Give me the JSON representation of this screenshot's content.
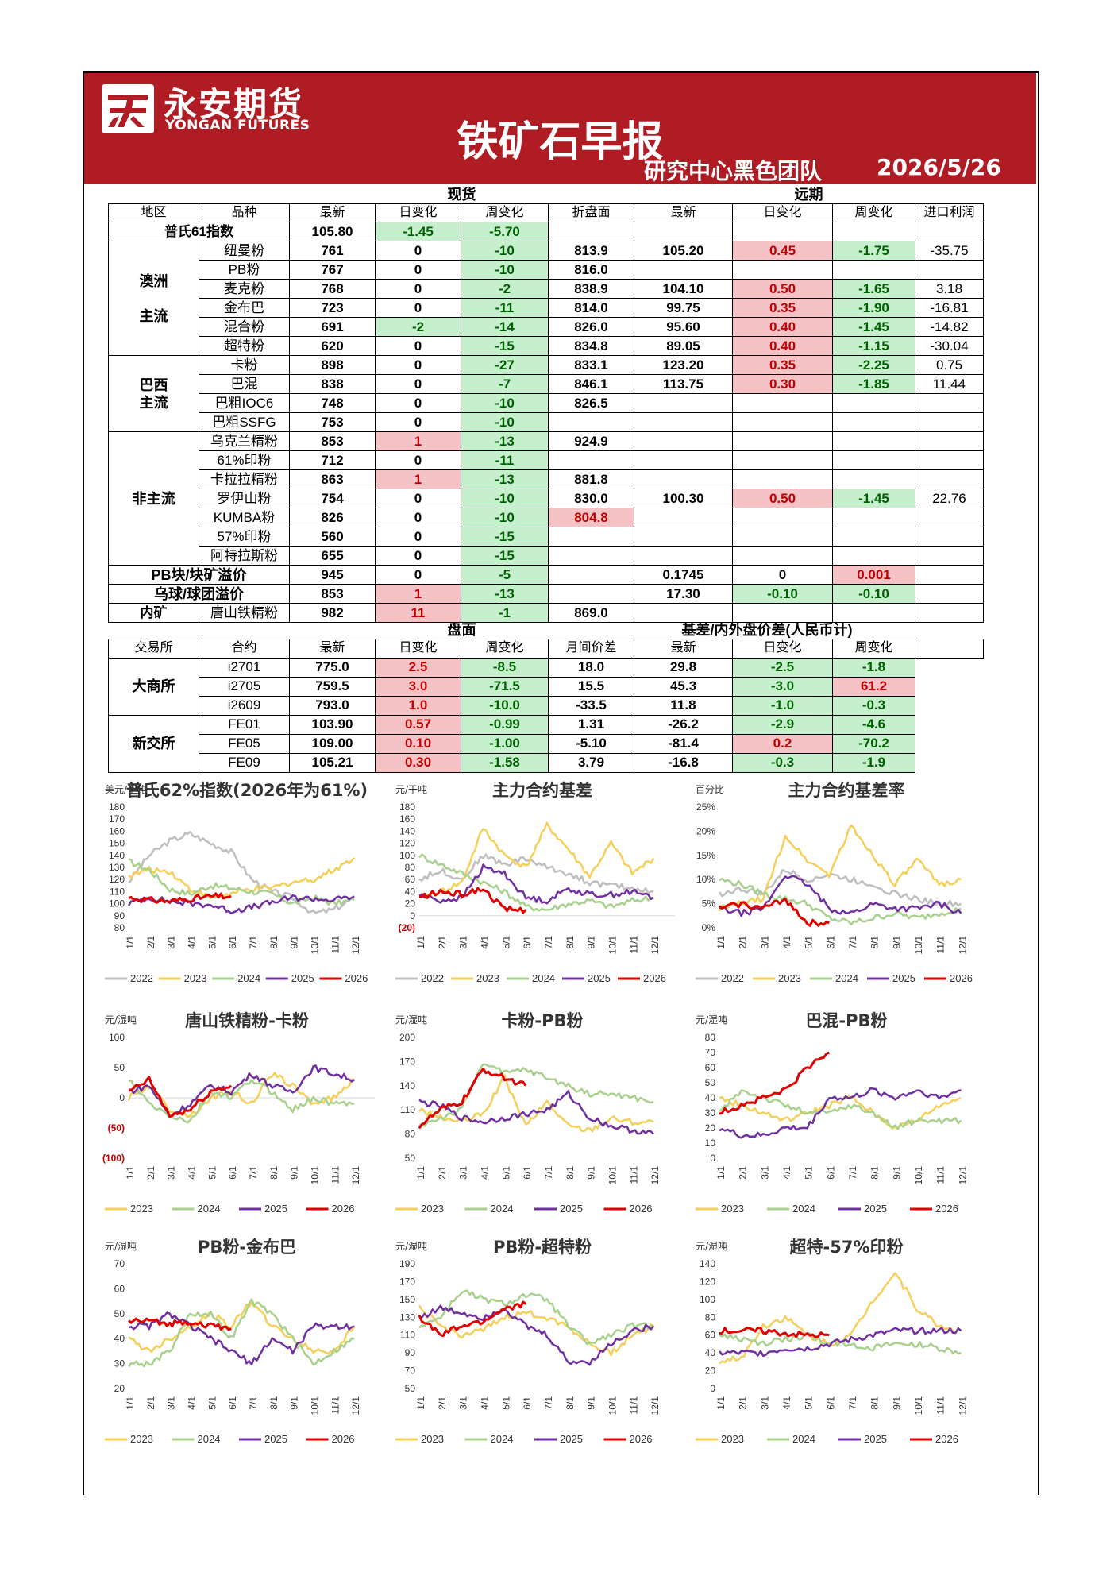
{
  "header": {
    "logo_cn": "永安期货",
    "logo_en": "YONGAN FUTURES",
    "title": "铁矿石早报",
    "team": "研究中心黑色团队",
    "date": "2026/5/26"
  },
  "spot": {
    "section_spot": "现货",
    "section_forward": "远期",
    "headers": [
      "地区",
      "品种",
      "最新",
      "日变化",
      "周变化",
      "折盘面",
      "最新",
      "日变化",
      "周变化",
      "进口利润"
    ],
    "platts": {
      "label": "普氏61指数",
      "latest": "105.80",
      "day": "-1.45",
      "week": "-5.70"
    },
    "groups": [
      {
        "region": "澳洲\n\n主流",
        "rows": [
          [
            "纽曼粉",
            "761",
            "0",
            "-10",
            "813.9",
            "105.20",
            "0.45",
            "-1.75",
            "-35.75"
          ],
          [
            "PB粉",
            "767",
            "0",
            "-10",
            "816.0",
            "",
            "",
            "",
            ""
          ],
          [
            "麦克粉",
            "768",
            "0",
            "-2",
            "838.9",
            "104.10",
            "0.50",
            "-1.65",
            "3.18"
          ],
          [
            "金布巴",
            "723",
            "0",
            "-11",
            "814.0",
            "99.75",
            "0.35",
            "-1.90",
            "-16.81"
          ],
          [
            "混合粉",
            "691",
            "-2",
            "-14",
            "826.0",
            "95.60",
            "0.40",
            "-1.45",
            "-14.82"
          ],
          [
            "超特粉",
            "620",
            "0",
            "-15",
            "834.8",
            "89.05",
            "0.40",
            "-1.15",
            "-30.04"
          ]
        ]
      },
      {
        "region": "巴西\n主流",
        "rows": [
          [
            "卡粉",
            "898",
            "0",
            "-27",
            "833.1",
            "123.20",
            "0.35",
            "-2.25",
            "0.75"
          ],
          [
            "巴混",
            "838",
            "0",
            "-7",
            "846.1",
            "113.75",
            "0.30",
            "-1.85",
            "11.44"
          ],
          [
            "巴粗IOC6",
            "748",
            "0",
            "-10",
            "826.5",
            "",
            "",
            "",
            ""
          ],
          [
            "巴粗SSFG",
            "753",
            "0",
            "-10",
            "",
            "",
            "",
            "",
            ""
          ]
        ]
      },
      {
        "region": "非主流",
        "rows": [
          [
            "乌克兰精粉",
            "853",
            "1",
            "-13",
            "924.9",
            "",
            "",
            "",
            ""
          ],
          [
            "61%印粉",
            "712",
            "0",
            "-11",
            "",
            "",
            "",
            "",
            ""
          ],
          [
            "卡拉拉精粉",
            "863",
            "1",
            "-13",
            "881.8",
            "",
            "",
            "",
            ""
          ],
          [
            "罗伊山粉",
            "754",
            "0",
            "-10",
            "830.0",
            "100.30",
            "0.50",
            "-1.45",
            "22.76"
          ],
          [
            "KUMBA粉",
            "826",
            "0",
            "-10",
            "804.8",
            "",
            "",
            "",
            ""
          ],
          [
            "57%印粉",
            "560",
            "0",
            "-15",
            "",
            "",
            "",
            "",
            ""
          ],
          [
            "阿特拉斯粉",
            "655",
            "0",
            "-15",
            "",
            "",
            "",
            "",
            ""
          ]
        ]
      }
    ],
    "premium": [
      {
        "label": "PB块/块矿溢价",
        "latest": "945",
        "day": "0",
        "week": "-5",
        "f_latest": "0.1745",
        "f_day": "0",
        "f_week": "0.001"
      },
      {
        "label": "乌球/球团溢价",
        "latest": "853",
        "day": "1",
        "week": "-13",
        "f_latest": "17.30",
        "f_day": "-0.10",
        "f_week": "-0.10"
      }
    ],
    "domestic": {
      "region": "内矿",
      "name": "唐山铁精粉",
      "latest": "982",
      "day": "11",
      "week": "-1",
      "disc": "869.0"
    }
  },
  "futures": {
    "section_disk": "盘面",
    "section_basis": "基差/内外盘价差(人民币计)",
    "headers": [
      "交易所",
      "合约",
      "最新",
      "日变化",
      "周变化",
      "月间价差",
      "最新",
      "日变化",
      "周变化"
    ],
    "groups": [
      {
        "exchange": "大商所",
        "rows": [
          [
            "i2701",
            "775.0",
            "2.5",
            "-8.5",
            "18.0",
            "29.8",
            "-2.5",
            "-1.8"
          ],
          [
            "i2705",
            "759.5",
            "3.0",
            "-71.5",
            "15.5",
            "45.3",
            "-3.0",
            "61.2"
          ],
          [
            "i2609",
            "793.0",
            "1.0",
            "-10.0",
            "-33.5",
            "11.8",
            "-1.0",
            "-0.3"
          ]
        ]
      },
      {
        "exchange": "新交所",
        "rows": [
          [
            "FE01",
            "103.90",
            "0.57",
            "-0.99",
            "1.31",
            "-26.2",
            "-2.9",
            "-4.6"
          ],
          [
            "FE05",
            "109.00",
            "0.10",
            "-1.00",
            "-5.10",
            "-81.4",
            "0.2",
            "-70.2"
          ],
          [
            "FE09",
            "105.21",
            "0.30",
            "-1.58",
            "3.79",
            "-16.8",
            "-0.3",
            "-1.9"
          ]
        ]
      }
    ]
  },
  "colors": {
    "y2022": "#bfbfbf",
    "y2023": "#f5cf5a",
    "y2024": "#a9d18e",
    "y2025": "#7030a0",
    "y2026": "#e00000",
    "banner": "#b01c24"
  },
  "month_ticks": [
    "1/1",
    "2/1",
    "3/1",
    "4/1",
    "5/1",
    "6/1",
    "7/1",
    "8/1",
    "9/1",
    "10/1",
    "11/1",
    "12/1"
  ],
  "chart_data": [
    {
      "type": "line",
      "title": "普氏62%指数(2026年为61%)",
      "unit": "美元/干吨",
      "ylim": [
        80,
        180
      ],
      "yticks": [
        "180",
        "170",
        "160",
        "150",
        "140",
        "130",
        "120",
        "110",
        "100",
        "90",
        "80"
      ],
      "legend": [
        "2022",
        "2023",
        "2024",
        "2025",
        "2026"
      ],
      "series": [
        {
          "name": "2022",
          "values": [
            118,
            140,
            152,
            158,
            150,
            143,
            120,
            110,
            105,
            92,
            95,
            105
          ]
        },
        {
          "name": "2023",
          "values": [
            123,
            128,
            127,
            112,
            105,
            108,
            112,
            113,
            118,
            120,
            128,
            138
          ]
        },
        {
          "name": "2024",
          "values": [
            135,
            128,
            112,
            108,
            115,
            113,
            110,
            108,
            100,
            105,
            100,
            103
          ]
        },
        {
          "name": "2025",
          "values": [
            100,
            105,
            102,
            100,
            99,
            94,
            97,
            101,
            105,
            104,
            103,
            106
          ]
        },
        {
          "name": "2026",
          "values": [
            105,
            103,
            102,
            104,
            106,
            106
          ]
        }
      ]
    },
    {
      "type": "line",
      "title": "主力合约基差",
      "unit": "元/干吨",
      "ylim": [
        -20,
        180
      ],
      "yticks": [
        "180",
        "160",
        "140",
        "120",
        "100",
        "80",
        "60",
        "40",
        "20",
        "0",
        "(20)"
      ],
      "legend": [
        "2022",
        "2023",
        "2024",
        "2025",
        "2026"
      ],
      "series": [
        {
          "name": "2022",
          "values": [
            60,
            75,
            60,
            100,
            85,
            95,
            80,
            70,
            55,
            50,
            45,
            40
          ]
        },
        {
          "name": "2023",
          "values": [
            30,
            40,
            55,
            145,
            100,
            80,
            150,
            110,
            65,
            120,
            70,
            95
          ]
        },
        {
          "name": "2024",
          "values": [
            100,
            85,
            70,
            55,
            40,
            15,
            10,
            20,
            25,
            15,
            25,
            30
          ]
        },
        {
          "name": "2025",
          "values": [
            35,
            25,
            30,
            80,
            70,
            30,
            25,
            45,
            35,
            35,
            40,
            30
          ]
        },
        {
          "name": "2026",
          "values": [
            30,
            40,
            35,
            45,
            10,
            10
          ]
        }
      ]
    },
    {
      "type": "line",
      "title": "主力合约基差率",
      "unit": "百分比",
      "ylim": [
        0,
        25
      ],
      "yticks": [
        "25%",
        "20%",
        "15%",
        "10%",
        "5%",
        "0%"
      ],
      "legend": [
        "2022",
        "2023",
        "2024",
        "2025",
        "2026"
      ],
      "series": [
        {
          "name": "2022",
          "values": [
            7,
            8,
            7,
            12,
            10,
            11,
            10,
            9,
            7,
            6,
            5,
            5
          ]
        },
        {
          "name": "2023",
          "values": [
            4,
            5,
            6,
            19,
            14,
            11,
            21,
            15,
            9,
            14,
            9,
            10
          ]
        },
        {
          "name": "2024",
          "values": [
            10,
            9,
            7,
            6,
            5,
            2,
            1,
            2,
            3,
            2,
            3,
            4
          ]
        },
        {
          "name": "2025",
          "values": [
            4,
            3,
            4,
            11,
            9,
            4,
            3,
            5,
            4,
            4,
            5,
            3
          ]
        },
        {
          "name": "2026",
          "values": [
            4,
            5,
            4,
            6,
            1,
            1
          ]
        }
      ]
    },
    {
      "type": "line",
      "title": "唐山铁精粉-卡粉",
      "unit": "元/湿吨",
      "ylim": [
        -100,
        100
      ],
      "yticks": [
        "100",
        "50",
        "0",
        "(50)",
        "(100)"
      ],
      "legend": [
        "2023",
        "2024",
        "2025",
        "2026"
      ],
      "series": [
        {
          "name": "2023",
          "values": [
            0,
            20,
            -20,
            -30,
            0,
            10,
            -10,
            40,
            20,
            -10,
            0,
            30
          ]
        },
        {
          "name": "2024",
          "values": [
            30,
            -10,
            -30,
            -40,
            10,
            0,
            30,
            10,
            -20,
            0,
            -10,
            -10
          ]
        },
        {
          "name": "2025",
          "values": [
            10,
            20,
            -30,
            -10,
            20,
            10,
            40,
            20,
            10,
            50,
            40,
            30
          ]
        },
        {
          "name": "2026",
          "values": [
            10,
            30,
            -30,
            -20,
            10,
            20
          ]
        }
      ]
    },
    {
      "type": "line",
      "title": "卡粉-PB粉",
      "unit": "元/湿吨",
      "ylim": [
        50,
        200
      ],
      "yticks": [
        "200",
        "170",
        "140",
        "110",
        "80",
        "50"
      ],
      "legend": [
        "2023",
        "2024",
        "2025",
        "2026"
      ],
      "series": [
        {
          "name": "2023",
          "values": [
            110,
            100,
            95,
            105,
            150,
            90,
            120,
            90,
            85,
            100,
            95,
            95
          ]
        },
        {
          "name": "2024",
          "values": [
            90,
            100,
            110,
            170,
            155,
            160,
            150,
            140,
            130,
            130,
            125,
            120
          ]
        },
        {
          "name": "2025",
          "values": [
            120,
            115,
            100,
            95,
            100,
            105,
            110,
            130,
            100,
            90,
            85,
            80
          ]
        },
        {
          "name": "2026",
          "values": [
            90,
            110,
            120,
            160,
            150,
            140
          ]
        }
      ]
    },
    {
      "type": "line",
      "title": "巴混-PB粉",
      "unit": "元/湿吨",
      "ylim": [
        0,
        80
      ],
      "yticks": [
        "80",
        "70",
        "60",
        "50",
        "40",
        "30",
        "20",
        "10",
        "0"
      ],
      "legend": [
        "2023",
        "2024",
        "2025",
        "2026"
      ],
      "series": [
        {
          "name": "2023",
          "values": [
            40,
            35,
            30,
            25,
            30,
            35,
            40,
            30,
            20,
            25,
            35,
            40
          ]
        },
        {
          "name": "2024",
          "values": [
            30,
            45,
            40,
            35,
            30,
            30,
            35,
            30,
            20,
            25,
            25,
            25
          ]
        },
        {
          "name": "2025",
          "values": [
            20,
            15,
            15,
            20,
            20,
            40,
            40,
            45,
            40,
            45,
            40,
            45
          ]
        },
        {
          "name": "2026",
          "values": [
            30,
            35,
            40,
            45,
            60,
            70
          ]
        }
      ]
    },
    {
      "type": "line",
      "title": "PB粉-金布巴",
      "unit": "元/湿吨",
      "ylim": [
        20,
        70
      ],
      "yticks": [
        "70",
        "60",
        "50",
        "40",
        "30",
        "20"
      ],
      "legend": [
        "2023",
        "2024",
        "2025",
        "2026"
      ],
      "series": [
        {
          "name": "2023",
          "values": [
            40,
            35,
            40,
            45,
            50,
            45,
            55,
            45,
            40,
            35,
            35,
            45
          ]
        },
        {
          "name": "2024",
          "values": [
            30,
            30,
            35,
            50,
            50,
            40,
            55,
            50,
            40,
            30,
            35,
            40
          ]
        },
        {
          "name": "2025",
          "values": [
            45,
            45,
            50,
            45,
            40,
            35,
            30,
            40,
            35,
            45,
            45,
            45
          ]
        },
        {
          "name": "2026",
          "values": [
            47,
            47,
            46,
            47,
            45,
            44
          ]
        }
      ]
    },
    {
      "type": "line",
      "title": "PB粉-超特粉",
      "unit": "元/湿吨",
      "ylim": [
        50,
        190
      ],
      "yticks": [
        "190",
        "170",
        "150",
        "130",
        "110",
        "90",
        "70",
        "50"
      ],
      "legend": [
        "2023",
        "2024",
        "2025",
        "2026"
      ],
      "series": [
        {
          "name": "2023",
          "values": [
            140,
            120,
            110,
            115,
            130,
            135,
            130,
            120,
            100,
            90,
            110,
            120
          ]
        },
        {
          "name": "2024",
          "values": [
            120,
            130,
            160,
            150,
            145,
            155,
            150,
            120,
            100,
            110,
            120,
            120
          ]
        },
        {
          "name": "2025",
          "values": [
            130,
            140,
            135,
            130,
            140,
            120,
            110,
            80,
            80,
            100,
            115,
            120
          ]
        },
        {
          "name": "2026",
          "values": [
            130,
            110,
            120,
            125,
            140,
            145
          ]
        }
      ]
    },
    {
      "type": "line",
      "title": "超特-57%印粉",
      "unit": "元/湿吨",
      "ylim": [
        0,
        140
      ],
      "yticks": [
        "140",
        "120",
        "100",
        "80",
        "60",
        "40",
        "20",
        "0"
      ],
      "legend": [
        "2023",
        "2024",
        "2025",
        "2026"
      ],
      "series": [
        {
          "name": "2023",
          "values": [
            30,
            35,
            70,
            80,
            60,
            50,
            60,
            100,
            130,
            90,
            70,
            65
          ]
        },
        {
          "name": "2024",
          "values": [
            60,
            55,
            50,
            55,
            60,
            50,
            50,
            45,
            50,
            50,
            45,
            40
          ]
        },
        {
          "name": "2025",
          "values": [
            40,
            40,
            40,
            45,
            45,
            50,
            55,
            60,
            65,
            65,
            65,
            65
          ]
        },
        {
          "name": "2026",
          "values": [
            65,
            65,
            65,
            62,
            60,
            60
          ]
        }
      ]
    }
  ]
}
